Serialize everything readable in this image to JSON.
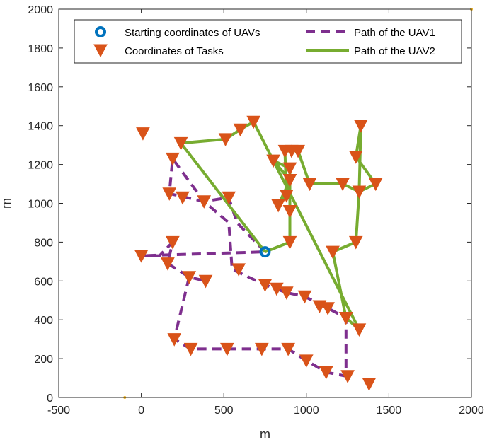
{
  "chart_data": {
    "type": "line",
    "title": "",
    "xlabel": "m",
    "ylabel": "m",
    "xlim": [
      -500,
      2000
    ],
    "ylim": [
      0,
      2000
    ],
    "xticks": [
      -500,
      0,
      500,
      1000,
      1500,
      2000
    ],
    "yticks": [
      0,
      200,
      400,
      600,
      800,
      1000,
      1200,
      1400,
      1600,
      1800,
      2000
    ],
    "grid": false,
    "legend_position": "top",
    "start": {
      "name": "Starting coordinates of UAVs",
      "point": [
        750,
        750
      ],
      "color": "#0072BD"
    },
    "tasks": {
      "name": "Coordinates of Tasks",
      "color": "#D95319",
      "points": [
        [
          10,
          1360
        ],
        [
          240,
          1310
        ],
        [
          510,
          1330
        ],
        [
          600,
          1380
        ],
        [
          680,
          1420
        ],
        [
          190,
          1230
        ],
        [
          170,
          1050
        ],
        [
          250,
          1030
        ],
        [
          380,
          1010
        ],
        [
          530,
          1030
        ],
        [
          190,
          800
        ],
        [
          0,
          730
        ],
        [
          160,
          690
        ],
        [
          290,
          620
        ],
        [
          390,
          600
        ],
        [
          590,
          660
        ],
        [
          750,
          580
        ],
        [
          820,
          560
        ],
        [
          880,
          540
        ],
        [
          990,
          520
        ],
        [
          1080,
          470
        ],
        [
          1130,
          460
        ],
        [
          1240,
          410
        ],
        [
          1320,
          350
        ],
        [
          200,
          300
        ],
        [
          300,
          250
        ],
        [
          520,
          250
        ],
        [
          730,
          250
        ],
        [
          890,
          250
        ],
        [
          1000,
          190
        ],
        [
          1120,
          130
        ],
        [
          1250,
          110
        ],
        [
          1380,
          70
        ],
        [
          830,
          990
        ],
        [
          880,
          1040
        ],
        [
          900,
          960
        ],
        [
          900,
          800
        ],
        [
          800,
          1220
        ],
        [
          900,
          1180
        ],
        [
          900,
          1120
        ],
        [
          910,
          1270
        ],
        [
          870,
          1270
        ],
        [
          950,
          1270
        ],
        [
          1020,
          1100
        ],
        [
          1220,
          1100
        ],
        [
          1320,
          1060
        ],
        [
          1420,
          1100
        ],
        [
          1300,
          1240
        ],
        [
          1330,
          1400
        ],
        [
          1160,
          750
        ],
        [
          1300,
          800
        ]
      ]
    },
    "series": [
      {
        "name": "Path of the UAV1",
        "color": "#7E2F8E",
        "style": "dashed",
        "points": [
          [
            750,
            750
          ],
          [
            580,
            900
          ],
          [
            530,
            1030
          ],
          [
            380,
            1010
          ],
          [
            190,
            1230
          ],
          [
            170,
            1050
          ],
          [
            380,
            1010
          ],
          [
            530,
            900
          ],
          [
            550,
            660
          ],
          [
            750,
            580
          ],
          [
            880,
            540
          ],
          [
            990,
            520
          ],
          [
            1130,
            460
          ],
          [
            1240,
            410
          ],
          [
            1240,
            110
          ],
          [
            1120,
            130
          ],
          [
            1000,
            190
          ],
          [
            890,
            250
          ],
          [
            730,
            250
          ],
          [
            520,
            250
          ],
          [
            300,
            250
          ],
          [
            200,
            300
          ],
          [
            290,
            620
          ],
          [
            390,
            600
          ],
          [
            290,
            620
          ],
          [
            160,
            690
          ],
          [
            190,
            800
          ],
          [
            110,
            730
          ],
          [
            0,
            730
          ],
          [
            750,
            750
          ]
        ]
      },
      {
        "name": "Path of the UAV2",
        "color": "#77AC30",
        "style": "solid",
        "points": [
          [
            750,
            750
          ],
          [
            240,
            1310
          ],
          [
            510,
            1330
          ],
          [
            600,
            1380
          ],
          [
            680,
            1420
          ],
          [
            1320,
            350
          ],
          [
            1240,
            410
          ],
          [
            1160,
            750
          ],
          [
            1300,
            800
          ],
          [
            1320,
            1060
          ],
          [
            1420,
            1100
          ],
          [
            1300,
            1240
          ],
          [
            1330,
            1400
          ],
          [
            1320,
            1060
          ],
          [
            1220,
            1100
          ],
          [
            1020,
            1100
          ],
          [
            950,
            1270
          ],
          [
            870,
            1270
          ],
          [
            880,
            1040
          ],
          [
            830,
            990
          ],
          [
            900,
            1120
          ],
          [
            800,
            1220
          ],
          [
            900,
            1180
          ],
          [
            900,
            960
          ],
          [
            900,
            800
          ],
          [
            750,
            750
          ]
        ]
      }
    ],
    "legend": [
      {
        "label": "Starting coordinates of UAVs",
        "marker": "circle",
        "color": "#0072BD"
      },
      {
        "label": "Coordinates of Tasks",
        "marker": "triangle-down",
        "color": "#D95319"
      },
      {
        "label": "Path of the UAV1",
        "marker": "dashed-line",
        "color": "#7E2F8E"
      },
      {
        "label": "Path of the UAV2",
        "marker": "solid-line",
        "color": "#77AC30"
      }
    ],
    "corner_markers": {
      "color": "#EDB120",
      "points": [
        [
          -100,
          0
        ],
        [
          2000,
          2000
        ]
      ]
    }
  }
}
